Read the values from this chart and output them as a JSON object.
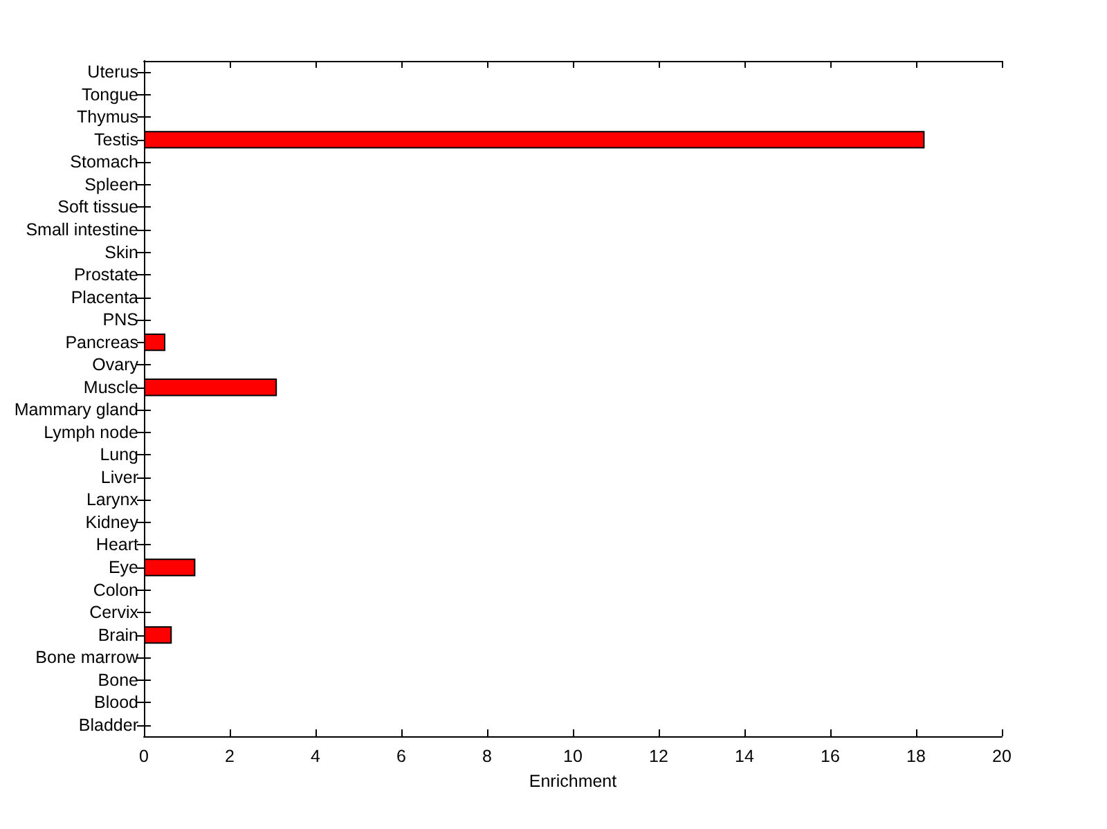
{
  "chart_data": {
    "type": "bar",
    "orientation": "horizontal",
    "xlabel": "Enrichment",
    "categories": [
      "Uterus",
      "Tongue",
      "Thymus",
      "Testis",
      "Stomach",
      "Spleen",
      "Soft tissue",
      "Small intestine",
      "Skin",
      "Prostate",
      "Placenta",
      "PNS",
      "Pancreas",
      "Ovary",
      "Muscle",
      "Mammary gland",
      "Lymph node",
      "Lung",
      "Liver",
      "Larynx",
      "Kidney",
      "Heart",
      "Eye",
      "Colon",
      "Cervix",
      "Brain",
      "Bone marrow",
      "Bone",
      "Blood",
      "Bladder"
    ],
    "values": [
      0,
      0,
      0,
      18.2,
      0,
      0,
      0,
      0,
      0,
      0,
      0,
      0,
      0.5,
      0,
      3.1,
      0,
      0,
      0,
      0,
      0,
      0,
      0,
      1.2,
      0,
      0,
      0.65,
      0,
      0,
      0,
      0
    ],
    "color": "#ff0000",
    "xlim": [
      0,
      20
    ],
    "xticks": [
      0,
      2,
      4,
      6,
      8,
      10,
      12,
      14,
      16,
      18,
      20
    ]
  }
}
